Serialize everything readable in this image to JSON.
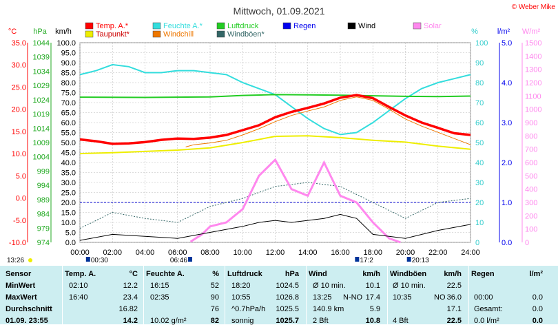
{
  "chart_data": {
    "type": "line",
    "title": "Mittwoch, 01.09.2021",
    "credit": "© Weber Mike",
    "legend": [
      {
        "label": "Temp. A.*",
        "color": "#ff0000"
      },
      {
        "label": "Feuchte A.*",
        "color": "#33dddd"
      },
      {
        "label": "Luftdruck",
        "color": "#22cc22"
      },
      {
        "label": "Regen",
        "color": "#0000ee"
      },
      {
        "label": "Wind",
        "color": "#000000"
      },
      {
        "label": "Solar",
        "color": "#ff88ee"
      },
      {
        "label": "Taupunkt*",
        "color": "#eeee00"
      },
      {
        "label": "Windchill",
        "color": "#ee7700"
      },
      {
        "label": "Windböen*",
        "color": "#336666"
      }
    ],
    "axis_units": {
      "temp": "°C",
      "pressure": "hPa",
      "wind": "km/h",
      "humidity": "%",
      "rain": "l/m²",
      "solar": "W/m²"
    },
    "temp_axis": {
      "min": -10,
      "max": 35,
      "ticks": [
        "35.0",
        "30.0",
        "25.0",
        "20.0",
        "15.0",
        "10.0",
        "5.0",
        "0.0",
        "-5.0",
        "-10.0"
      ]
    },
    "pressure_axis": {
      "min": 974,
      "max": 1044,
      "ticks": [
        "1044",
        "1039",
        "1034",
        "1029",
        "1024",
        "1019",
        "1014",
        "1009",
        "1004",
        "999",
        "994",
        "989",
        "984",
        "979",
        "974"
      ]
    },
    "wind_axis": {
      "min": 0,
      "max": 100,
      "ticks": [
        "100.0",
        "95.0",
        "90.0",
        "85.0",
        "80.0",
        "75.0",
        "70.0",
        "65.0",
        "60.0",
        "55.0",
        "50.0",
        "45.0",
        "40.0",
        "35.0",
        "30.0",
        "25.0",
        "20.0",
        "15.0",
        "10.0",
        "5.0",
        "0.0"
      ]
    },
    "humidity_axis": {
      "min": 0,
      "max": 100,
      "ticks": [
        "100",
        "90",
        "80",
        "70",
        "60",
        "50",
        "40",
        "30",
        "20",
        "10",
        "0"
      ]
    },
    "rain_axis": {
      "min": 0,
      "max": 5,
      "ticks": [
        "5.0",
        "4.0",
        "3.0",
        "2.0",
        "1.0",
        "0.0"
      ]
    },
    "solar_axis": {
      "min": 0,
      "max": 1500,
      "ticks": [
        "1500",
        "1400",
        "1300",
        "1200",
        "1100",
        "1000",
        "900",
        "800",
        "700",
        "600",
        "500",
        "400",
        "300",
        "200",
        "100",
        "0"
      ]
    },
    "x_ticks": [
      "00:00",
      "02:00",
      "04:00",
      "06:00",
      "08:00",
      "10:00",
      "12:00",
      "14:00",
      "16:00",
      "18:00",
      "20:00",
      "22:00",
      "24:00"
    ],
    "sun_markers": [
      "00:30",
      "06:46",
      "17:2",
      "20:13"
    ],
    "moon_time": "13:26",
    "series": {
      "temp": {
        "x": [
          0,
          1,
          2,
          3,
          4,
          5,
          6,
          7,
          8,
          9,
          10,
          11,
          12,
          13,
          14,
          15,
          16,
          17,
          18,
          19,
          20,
          21,
          22,
          23,
          24
        ],
        "y": [
          13.2,
          12.8,
          12.2,
          12.3,
          12.6,
          13.1,
          13.4,
          13.3,
          13.6,
          14.2,
          15.3,
          16.4,
          18.2,
          19.4,
          20.3,
          21.3,
          22.6,
          23.2,
          22.5,
          20.5,
          18.6,
          17.0,
          15.8,
          14.6,
          14.2
        ]
      },
      "dew": {
        "x": [
          0,
          2,
          4,
          6,
          8,
          10,
          12,
          14,
          16,
          17,
          18,
          20,
          22,
          24
        ],
        "y": [
          10.0,
          10.2,
          10.5,
          10.8,
          11.3,
          12.5,
          13.9,
          14.0,
          13.6,
          13.3,
          13.0,
          12.6,
          11.7,
          11.0
        ]
      },
      "windchill": {
        "x": [
          6.5,
          7,
          8,
          9,
          10,
          11,
          12,
          13,
          14,
          15,
          16,
          17,
          18,
          19,
          20,
          21,
          22,
          23,
          24
        ],
        "y": [
          11.5,
          12.0,
          12.4,
          13.0,
          14.2,
          15.6,
          17.2,
          18.6,
          19.6,
          20.5,
          22.0,
          22.8,
          22.0,
          20.0,
          17.8,
          16.2,
          14.8,
          13.4,
          12.0
        ]
      },
      "humidity": {
        "x": [
          0,
          1,
          2,
          3,
          4,
          5,
          6,
          7,
          8,
          9,
          10,
          11,
          12,
          13,
          14,
          15,
          16,
          17,
          18,
          19,
          20,
          21,
          22,
          23,
          24
        ],
        "y": [
          84,
          86,
          89,
          88,
          85,
          85,
          86,
          86,
          85,
          84,
          80,
          77,
          74,
          68,
          62,
          57,
          54,
          55,
          60,
          66,
          72,
          77,
          80,
          82,
          84
        ]
      },
      "pressure": {
        "x": [
          0,
          4,
          8,
          10,
          12,
          14,
          16,
          18,
          20,
          22,
          24
        ],
        "y": [
          1024.9,
          1024.8,
          1025.0,
          1025.5,
          1025.8,
          1025.7,
          1025.6,
          1025.4,
          1025.2,
          1025.1,
          1025.3
        ]
      },
      "wind": {
        "x": [
          0,
          2,
          4,
          6,
          8,
          10,
          11,
          12,
          13,
          14,
          15,
          16,
          17,
          18,
          19,
          20,
          22,
          24
        ],
        "y": [
          1,
          4,
          3,
          2,
          5,
          8,
          10,
          11,
          10,
          11,
          12,
          14,
          12,
          4,
          3,
          2,
          6,
          9
        ]
      },
      "gusts": {
        "x": [
          0,
          2,
          4,
          6,
          8,
          10,
          12,
          14,
          16,
          18,
          20,
          22,
          24
        ],
        "y": [
          7,
          15,
          12,
          10,
          18,
          22,
          28,
          30,
          28,
          20,
          12,
          20,
          22
        ]
      },
      "solar": {
        "x": [
          6.8,
          7.5,
          8,
          9,
          10,
          11,
          12,
          13,
          14,
          15,
          16,
          17,
          18,
          19,
          19.7
        ],
        "y": [
          5,
          60,
          120,
          150,
          250,
          500,
          620,
          400,
          350,
          600,
          350,
          300,
          150,
          30,
          0
        ]
      }
    }
  },
  "table": {
    "headers": {
      "sensor": "Sensor",
      "temp": "Temp. A.",
      "temp_unit": "°C",
      "hum": "Feuchte A.",
      "hum_unit": "%",
      "press": "Luftdruck",
      "press_unit": "hPa",
      "wind": "Wind",
      "wind_unit": "km/h",
      "gust": "Windböen",
      "gust_unit": "km/h",
      "rain": "Regen",
      "rain_unit": "l/m²"
    },
    "rows": [
      {
        "label": "MinWert",
        "t_time": "02:10",
        "t_val": "12.2",
        "h_time": "16:15",
        "h_val": "52",
        "p_time": "18:20",
        "p_val": "1024.5",
        "w_time": "Ø 10 min.",
        "w_val": "10.1",
        "g_time": "Ø 10 min.",
        "g_val": "22.5",
        "r_time": "",
        "r_val": ""
      },
      {
        "label": "MaxWert",
        "t_time": "16:40",
        "t_val": "23.4",
        "h_time": "02:35",
        "h_val": "90",
        "p_time": "10:55",
        "p_val": "1026.8",
        "w_time": "13:25",
        "w_dir": "N-NO",
        "w_val": "17.4",
        "g_time": "10:35",
        "g_dir": "NO",
        "g_val": "36.0",
        "r_time": "00:00",
        "r_val": "0.0"
      },
      {
        "label": "Durchschnitt",
        "t_time": "",
        "t_val": "16.82",
        "h_time": "",
        "h_val": "76",
        "p_time": "^0.7hPa/h",
        "p_val": "1025.5",
        "w_time": "140.9 km",
        "w_val": "5.9",
        "g_time": "",
        "g_val": "17.1",
        "r_time": "Gesamt:",
        "r_val": "0.0"
      },
      {
        "label": "01.09.  23:55",
        "t_time": "",
        "t_val": "14.2",
        "h_time": "10.02 g/m²",
        "h_val": "82",
        "p_time": "sonnig",
        "p_val": "1025.7",
        "w_time": "2 Bft",
        "w_val": "10.8",
        "g_time": "4 Bft",
        "g_val": "22.5",
        "r_time": "0.0 l/m²",
        "r_val": "0.0"
      }
    ]
  }
}
